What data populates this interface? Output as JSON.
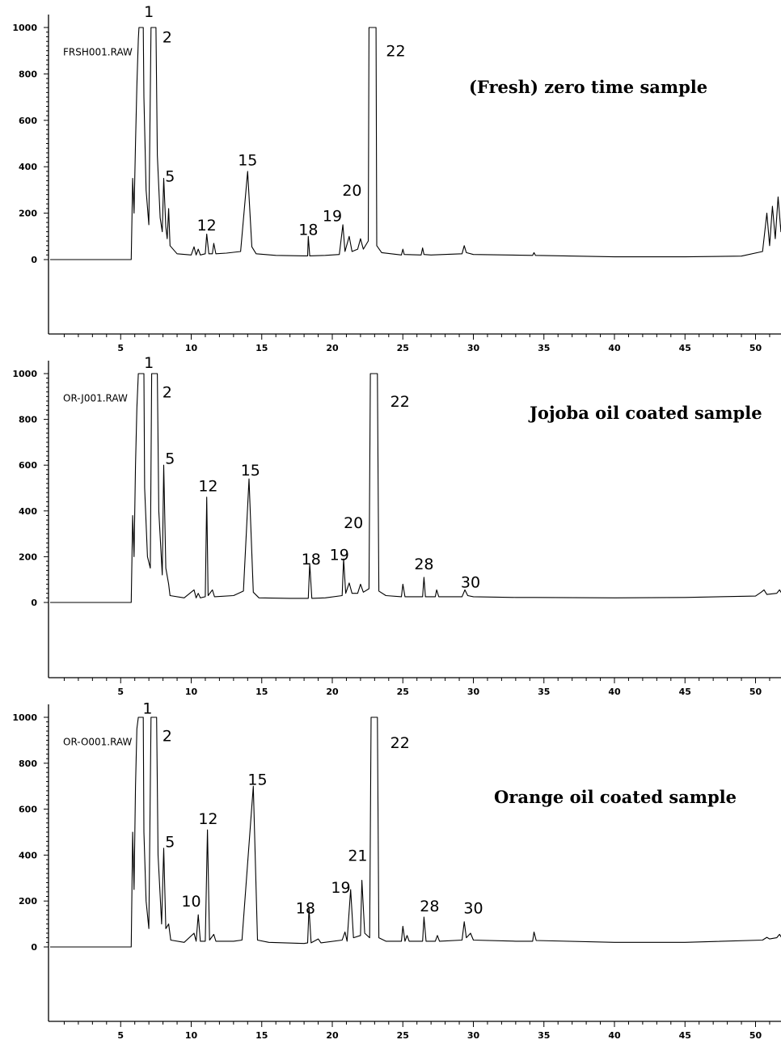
{
  "chart_data": [
    {
      "type": "line",
      "title": "(Fresh) zero time sample",
      "file_label": "FRSH001.RAW",
      "xlim": [
        0,
        52
      ],
      "ylim": [
        0,
        1000
      ],
      "x_ticks": [
        "5",
        "10",
        "15",
        "20",
        "25",
        "30",
        "35",
        "40",
        "45",
        "50"
      ],
      "y_ticks": [
        "0",
        "200",
        "400",
        "600",
        "800",
        "1000"
      ],
      "peak_labels": [
        {
          "label": "1",
          "rt": 7.0,
          "label_y": 1070
        },
        {
          "label": "2",
          "rt": 8.3,
          "label_y": 960
        },
        {
          "label": "5",
          "rt": 8.5,
          "label_y": 360
        },
        {
          "label": "12",
          "rt": 11.1,
          "label_y": 150
        },
        {
          "label": "15",
          "rt": 14.0,
          "label_y": 430
        },
        {
          "label": "18",
          "rt": 18.3,
          "label_y": 130
        },
        {
          "label": "19",
          "rt": 20.0,
          "label_y": 190
        },
        {
          "label": "20",
          "rt": 21.4,
          "label_y": 300
        },
        {
          "label": "22",
          "rt": 24.5,
          "label_y": 900
        }
      ],
      "points": [
        [
          0,
          0
        ],
        [
          5.75,
          0
        ],
        [
          5.85,
          350
        ],
        [
          5.95,
          200
        ],
        [
          6.05,
          500
        ],
        [
          6.15,
          750
        ],
        [
          6.25,
          950
        ],
        [
          6.3,
          1000
        ],
        [
          6.6,
          1000
        ],
        [
          6.65,
          700
        ],
        [
          6.8,
          300
        ],
        [
          7.0,
          150
        ],
        [
          7.15,
          1000
        ],
        [
          7.5,
          1000
        ],
        [
          7.6,
          450
        ],
        [
          7.8,
          180
        ],
        [
          7.95,
          120
        ],
        [
          8.05,
          350
        ],
        [
          8.2,
          140
        ],
        [
          8.3,
          90
        ],
        [
          8.4,
          220
        ],
        [
          8.5,
          60
        ],
        [
          9.0,
          25
        ],
        [
          10.0,
          20
        ],
        [
          10.2,
          55
        ],
        [
          10.35,
          20
        ],
        [
          10.5,
          45
        ],
        [
          10.65,
          20
        ],
        [
          11.0,
          25
        ],
        [
          11.1,
          110
        ],
        [
          11.25,
          25
        ],
        [
          11.5,
          25
        ],
        [
          11.6,
          70
        ],
        [
          11.75,
          25
        ],
        [
          12.5,
          28
        ],
        [
          13.5,
          35
        ],
        [
          14.0,
          380
        ],
        [
          14.3,
          55
        ],
        [
          14.6,
          25
        ],
        [
          16.0,
          18
        ],
        [
          18.0,
          16
        ],
        [
          18.25,
          16
        ],
        [
          18.3,
          100
        ],
        [
          18.4,
          16
        ],
        [
          19.5,
          18
        ],
        [
          20.5,
          22
        ],
        [
          20.75,
          150
        ],
        [
          20.9,
          35
        ],
        [
          21.2,
          100
        ],
        [
          21.4,
          35
        ],
        [
          21.8,
          45
        ],
        [
          22.0,
          90
        ],
        [
          22.2,
          45
        ],
        [
          22.55,
          80
        ],
        [
          22.6,
          1000
        ],
        [
          23.1,
          1000
        ],
        [
          23.15,
          60
        ],
        [
          23.5,
          30
        ],
        [
          24.9,
          20
        ],
        [
          25.0,
          45
        ],
        [
          25.1,
          22
        ],
        [
          26.3,
          20
        ],
        [
          26.4,
          50
        ],
        [
          26.5,
          22
        ],
        [
          27.0,
          20
        ],
        [
          29.2,
          25
        ],
        [
          29.35,
          60
        ],
        [
          29.5,
          30
        ],
        [
          30.0,
          22
        ],
        [
          34.2,
          18
        ],
        [
          34.3,
          30
        ],
        [
          34.4,
          18
        ],
        [
          40.0,
          12
        ],
        [
          45.0,
          12
        ],
        [
          49.0,
          15
        ],
        [
          50.5,
          35
        ],
        [
          50.8,
          200
        ],
        [
          51.0,
          60
        ],
        [
          51.2,
          230
        ],
        [
          51.4,
          90
        ],
        [
          51.6,
          270
        ],
        [
          51.8,
          120
        ],
        [
          52.0,
          300
        ]
      ]
    },
    {
      "type": "line",
      "title": "Jojoba oil coated sample",
      "file_label": "OR-J001.RAW",
      "xlim": [
        0,
        52
      ],
      "ylim": [
        0,
        1000
      ],
      "x_ticks": [
        "5",
        "10",
        "15",
        "20",
        "25",
        "30",
        "35",
        "40",
        "45",
        "50"
      ],
      "y_ticks": [
        "0",
        "200",
        "400",
        "600",
        "800",
        "1000"
      ],
      "peak_labels": [
        {
          "label": "1",
          "rt": 7.0,
          "label_y": 1050
        },
        {
          "label": "2",
          "rt": 8.3,
          "label_y": 920
        },
        {
          "label": "5",
          "rt": 8.5,
          "label_y": 630
        },
        {
          "label": "12",
          "rt": 11.2,
          "label_y": 510
        },
        {
          "label": "15",
          "rt": 14.2,
          "label_y": 580
        },
        {
          "label": "18",
          "rt": 18.5,
          "label_y": 190
        },
        {
          "label": "19",
          "rt": 20.5,
          "label_y": 210
        },
        {
          "label": "20",
          "rt": 21.5,
          "label_y": 350
        },
        {
          "label": "22",
          "rt": 24.8,
          "label_y": 880
        },
        {
          "label": "28",
          "rt": 26.5,
          "label_y": 170
        },
        {
          "label": "30",
          "rt": 29.8,
          "label_y": 90
        }
      ],
      "points": [
        [
          0,
          0
        ],
        [
          5.75,
          0
        ],
        [
          5.85,
          380
        ],
        [
          5.95,
          200
        ],
        [
          6.05,
          600
        ],
        [
          6.15,
          850
        ],
        [
          6.25,
          1000
        ],
        [
          6.65,
          1000
        ],
        [
          6.7,
          500
        ],
        [
          6.9,
          200
        ],
        [
          7.1,
          150
        ],
        [
          7.2,
          1000
        ],
        [
          7.6,
          1000
        ],
        [
          7.7,
          400
        ],
        [
          7.95,
          120
        ],
        [
          8.05,
          600
        ],
        [
          8.2,
          150
        ],
        [
          8.4,
          80
        ],
        [
          8.5,
          30
        ],
        [
          9.5,
          20
        ],
        [
          10.2,
          55
        ],
        [
          10.35,
          20
        ],
        [
          10.5,
          40
        ],
        [
          10.65,
          20
        ],
        [
          11.0,
          25
        ],
        [
          11.1,
          460
        ],
        [
          11.2,
          30
        ],
        [
          11.5,
          55
        ],
        [
          11.65,
          25
        ],
        [
          13.0,
          30
        ],
        [
          13.7,
          50
        ],
        [
          14.1,
          540
        ],
        [
          14.4,
          45
        ],
        [
          14.8,
          20
        ],
        [
          17.0,
          18
        ],
        [
          18.3,
          18
        ],
        [
          18.4,
          170
        ],
        [
          18.55,
          18
        ],
        [
          19.5,
          20
        ],
        [
          20.7,
          30
        ],
        [
          20.8,
          190
        ],
        [
          20.95,
          40
        ],
        [
          21.2,
          85
        ],
        [
          21.4,
          40
        ],
        [
          21.8,
          40
        ],
        [
          22.0,
          80
        ],
        [
          22.2,
          45
        ],
        [
          22.6,
          60
        ],
        [
          22.7,
          1000
        ],
        [
          23.2,
          1000
        ],
        [
          23.3,
          50
        ],
        [
          23.8,
          30
        ],
        [
          24.9,
          25
        ],
        [
          25.0,
          80
        ],
        [
          25.15,
          25
        ],
        [
          26.4,
          25
        ],
        [
          26.5,
          110
        ],
        [
          26.6,
          25
        ],
        [
          27.3,
          25
        ],
        [
          27.4,
          55
        ],
        [
          27.55,
          25
        ],
        [
          29.2,
          25
        ],
        [
          29.4,
          55
        ],
        [
          29.6,
          30
        ],
        [
          30.0,
          25
        ],
        [
          33.0,
          22
        ],
        [
          34.3,
          22
        ],
        [
          40.0,
          20
        ],
        [
          45.0,
          22
        ],
        [
          50.0,
          28
        ],
        [
          50.4,
          45
        ],
        [
          50.6,
          55
        ],
        [
          50.8,
          35
        ],
        [
          51.5,
          40
        ],
        [
          51.7,
          55
        ],
        [
          51.9,
          35
        ]
      ]
    },
    {
      "type": "line",
      "title": "Orange oil coated sample",
      "file_label": "OR-O001.RAW",
      "xlim": [
        0,
        52
      ],
      "ylim": [
        0,
        1000
      ],
      "x_ticks": [
        "5",
        "10",
        "15",
        "20",
        "25",
        "30",
        "35",
        "40",
        "45",
        "50"
      ],
      "y_ticks": [
        "0",
        "200",
        "400",
        "600",
        "800",
        "1000"
      ],
      "peak_labels": [
        {
          "label": "1",
          "rt": 6.9,
          "label_y": 1040
        },
        {
          "label": "2",
          "rt": 8.3,
          "label_y": 920
        },
        {
          "label": "5",
          "rt": 8.5,
          "label_y": 460
        },
        {
          "label": "10",
          "rt": 10.0,
          "label_y": 200
        },
        {
          "label": "12",
          "rt": 11.2,
          "label_y": 560
        },
        {
          "label": "15",
          "rt": 14.7,
          "label_y": 730
        },
        {
          "label": "18",
          "rt": 18.1,
          "label_y": 170
        },
        {
          "label": "19",
          "rt": 20.6,
          "label_y": 260
        },
        {
          "label": "21",
          "rt": 21.8,
          "label_y": 400
        },
        {
          "label": "22",
          "rt": 24.8,
          "label_y": 890
        },
        {
          "label": "28",
          "rt": 26.9,
          "label_y": 180
        },
        {
          "label": "30",
          "rt": 30.0,
          "label_y": 170
        }
      ],
      "points": [
        [
          0,
          0
        ],
        [
          5.75,
          0
        ],
        [
          5.85,
          500
        ],
        [
          5.95,
          250
        ],
        [
          6.05,
          700
        ],
        [
          6.15,
          950
        ],
        [
          6.25,
          1000
        ],
        [
          6.6,
          1000
        ],
        [
          6.65,
          500
        ],
        [
          6.8,
          200
        ],
        [
          7.0,
          80
        ],
        [
          7.15,
          1000
        ],
        [
          7.55,
          1000
        ],
        [
          7.65,
          400
        ],
        [
          7.9,
          100
        ],
        [
          8.05,
          430
        ],
        [
          8.2,
          80
        ],
        [
          8.4,
          100
        ],
        [
          8.55,
          30
        ],
        [
          9.5,
          20
        ],
        [
          10.2,
          60
        ],
        [
          10.35,
          25
        ],
        [
          10.5,
          140
        ],
        [
          10.65,
          25
        ],
        [
          11.0,
          25
        ],
        [
          11.15,
          510
        ],
        [
          11.3,
          30
        ],
        [
          11.6,
          55
        ],
        [
          11.75,
          25
        ],
        [
          13.0,
          25
        ],
        [
          13.6,
          30
        ],
        [
          14.4,
          700
        ],
        [
          14.7,
          30
        ],
        [
          15.5,
          20
        ],
        [
          18.0,
          15
        ],
        [
          18.25,
          18
        ],
        [
          18.35,
          170
        ],
        [
          18.5,
          18
        ],
        [
          19.0,
          35
        ],
        [
          19.2,
          18
        ],
        [
          20.7,
          30
        ],
        [
          20.9,
          65
        ],
        [
          21.05,
          25
        ],
        [
          21.3,
          250
        ],
        [
          21.5,
          40
        ],
        [
          22.0,
          50
        ],
        [
          22.1,
          290
        ],
        [
          22.3,
          60
        ],
        [
          22.65,
          40
        ],
        [
          22.75,
          1000
        ],
        [
          23.2,
          1000
        ],
        [
          23.3,
          40
        ],
        [
          23.8,
          25
        ],
        [
          24.9,
          25
        ],
        [
          25.0,
          90
        ],
        [
          25.15,
          25
        ],
        [
          25.3,
          50
        ],
        [
          25.45,
          25
        ],
        [
          26.4,
          25
        ],
        [
          26.5,
          130
        ],
        [
          26.65,
          25
        ],
        [
          27.3,
          25
        ],
        [
          27.45,
          50
        ],
        [
          27.6,
          25
        ],
        [
          29.2,
          30
        ],
        [
          29.35,
          110
        ],
        [
          29.5,
          40
        ],
        [
          29.8,
          60
        ],
        [
          30.0,
          30
        ],
        [
          33.0,
          25
        ],
        [
          34.2,
          25
        ],
        [
          34.3,
          65
        ],
        [
          34.45,
          28
        ],
        [
          40.0,
          20
        ],
        [
          45.0,
          20
        ],
        [
          50.5,
          30
        ],
        [
          50.8,
          42
        ],
        [
          51.0,
          35
        ],
        [
          51.5,
          40
        ],
        [
          51.7,
          55
        ],
        [
          51.9,
          35
        ]
      ]
    }
  ]
}
